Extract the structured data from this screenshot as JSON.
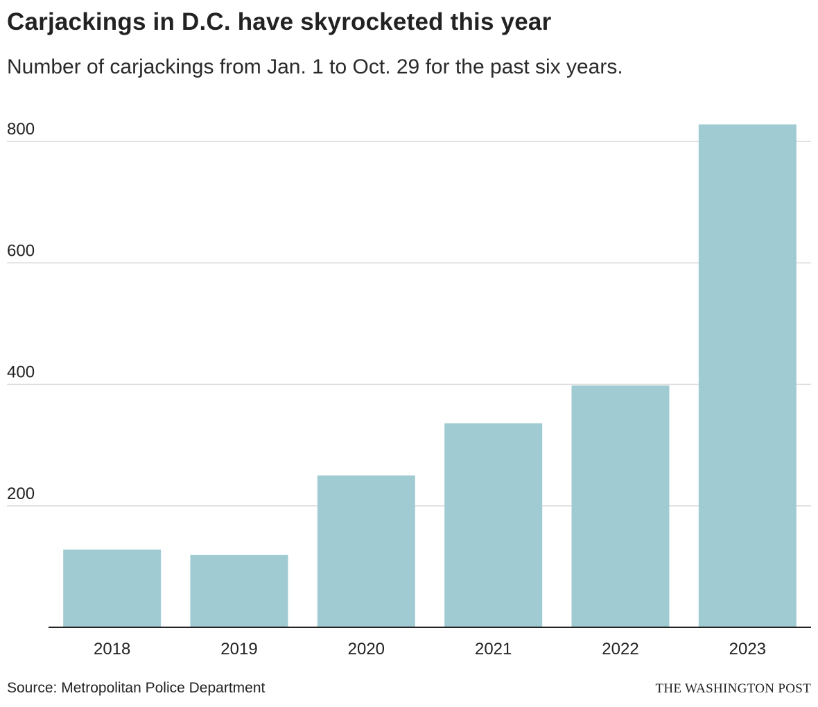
{
  "header": {
    "title": "Carjackings in D.C. have skyrocketed this year",
    "subtitle": "Number of carjackings from Jan. 1 to Oct. 29 for the past six years."
  },
  "footer": {
    "source": "Source: Metropolitan Police Department",
    "credit": "THE WASHINGTON POST"
  },
  "colors": {
    "bar": "#a0cbd2",
    "grid": "#d9d9d9",
    "axis": "#222222",
    "text": "#222222"
  },
  "chart_data": {
    "type": "bar",
    "title": "Carjackings in D.C. have skyrocketed this year",
    "subtitle": "Number of carjackings from Jan. 1 to Oct. 29 for the past six years.",
    "xlabel": "",
    "ylabel": "",
    "categories": [
      "2018",
      "2019",
      "2020",
      "2021",
      "2022",
      "2023"
    ],
    "values": [
      128,
      119,
      250,
      336,
      398,
      828
    ],
    "ylim": [
      0,
      800
    ],
    "yticks": [
      200,
      400,
      600,
      800
    ],
    "ytick_labels": [
      "200",
      "400",
      "600",
      "800"
    ],
    "grid": true,
    "legend": "none"
  }
}
